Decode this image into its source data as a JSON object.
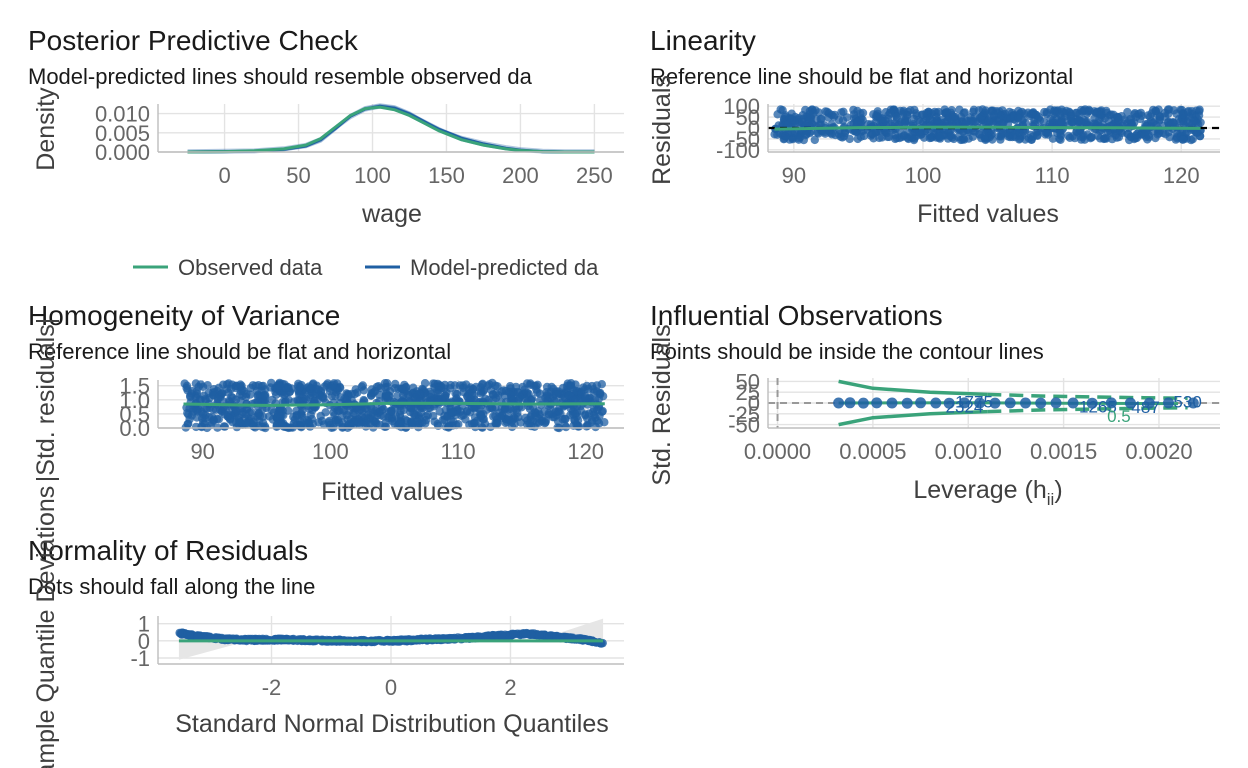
{
  "colors": {
    "blue": "#1f5fa3",
    "green": "#3aa37a",
    "grid": "#e3e3e3",
    "axis": "#bdbdbd",
    "band": "#e6e6e6"
  },
  "chart_data": [
    {
      "id": "ppc",
      "type": "line",
      "title": "Posterior Predictive Check",
      "subtitle": "Model-predicted lines should resemble observed da",
      "xlabel": "wage",
      "ylabel": "Density",
      "xlim": [
        -45,
        270
      ],
      "ylim": [
        0,
        0.0125
      ],
      "x_ticks": [
        {
          "v": 0,
          "label": "0"
        },
        {
          "v": 50,
          "label": "50"
        },
        {
          "v": 100,
          "label": "100"
        },
        {
          "v": 150,
          "label": "150"
        },
        {
          "v": 200,
          "label": "200"
        },
        {
          "v": 250,
          "label": "250"
        }
      ],
      "y_ticks": [
        {
          "v": 0.0,
          "label": "0.000"
        },
        {
          "v": 0.005,
          "label": "0.005"
        },
        {
          "v": 0.01,
          "label": "0.010"
        }
      ],
      "legend": [
        "Observed data",
        "Model-predicted da"
      ],
      "legend_position": "bottom",
      "grid": true,
      "series": [
        {
          "name": "Observed data",
          "x": [
            -25,
            0,
            20,
            40,
            55,
            65,
            75,
            85,
            95,
            105,
            115,
            125,
            135,
            145,
            160,
            175,
            190,
            200,
            215,
            230,
            250
          ],
          "y": [
            0.0,
            0.0001,
            0.0003,
            0.0008,
            0.0018,
            0.0035,
            0.0065,
            0.0095,
            0.0113,
            0.0117,
            0.011,
            0.0095,
            0.0075,
            0.0055,
            0.0032,
            0.0018,
            0.0008,
            0.0004,
            0.0001,
            0.0,
            0.0
          ]
        },
        {
          "name": "Model-predicted da",
          "x": [
            -25,
            0,
            20,
            40,
            55,
            65,
            75,
            85,
            95,
            105,
            115,
            125,
            135,
            145,
            160,
            175,
            190,
            200,
            215,
            230,
            250
          ],
          "y": [
            0.0,
            0.0001,
            0.0002,
            0.0007,
            0.0016,
            0.0032,
            0.0062,
            0.0093,
            0.0112,
            0.0119,
            0.0114,
            0.0099,
            0.0079,
            0.0059,
            0.0036,
            0.0021,
            0.001,
            0.0005,
            0.0001,
            0.0,
            0.0
          ]
        }
      ]
    },
    {
      "id": "linearity",
      "type": "scatter",
      "title": "Linearity",
      "subtitle": "Reference line should be flat and horizontal",
      "xlabel": "Fitted values",
      "ylabel": "Residuals",
      "xlim": [
        88,
        123
      ],
      "ylim": [
        -110,
        110
      ],
      "x_ticks": [
        {
          "v": 90,
          "label": "90"
        },
        {
          "v": 100,
          "label": "100"
        },
        {
          "v": 110,
          "label": "110"
        },
        {
          "v": 120,
          "label": "120"
        }
      ],
      "y_ticks": [
        {
          "v": 100,
          "label": "100"
        },
        {
          "v": 50,
          "label": "50"
        },
        {
          "v": 0,
          "label": "0"
        },
        {
          "v": -50,
          "label": "-50"
        },
        {
          "v": -100,
          "label": "-100"
        }
      ],
      "x_range_data": [
        88.5,
        121.5
      ],
      "point_band": [
        -55,
        85
      ],
      "reference_y": 0,
      "smooth": {
        "x": [
          88.5,
          95,
          100,
          105,
          110,
          115,
          121.5
        ],
        "y": [
          -5,
          2,
          3,
          3,
          2,
          1,
          -2
        ]
      },
      "grid": true
    },
    {
      "id": "homogeneity",
      "type": "scatter",
      "title": "Homogeneity of Variance",
      "subtitle": "Reference line should be flat and horizontal",
      "xlabel": "Fitted values",
      "ylabel": "|Std. residuals|",
      "xlim": [
        86.5,
        123
      ],
      "ylim": [
        0,
        1.7
      ],
      "x_ticks": [
        {
          "v": 90,
          "label": "90"
        },
        {
          "v": 100,
          "label": "100"
        },
        {
          "v": 110,
          "label": "110"
        },
        {
          "v": 120,
          "label": "120"
        }
      ],
      "y_ticks": [
        {
          "v": 1.5,
          "label": "1.5"
        },
        {
          "v": 1.0,
          "label": "1.0"
        },
        {
          "v": 0.5,
          "label": "0.5"
        },
        {
          "v": 0.0,
          "label": "0.0"
        }
      ],
      "x_range_data": [
        88.5,
        121.5
      ],
      "point_band": [
        0.0,
        1.6
      ],
      "smooth": {
        "x": [
          88.5,
          95,
          100,
          105,
          110,
          115,
          121.5
        ],
        "y": [
          0.85,
          0.8,
          0.82,
          0.88,
          0.87,
          0.85,
          0.86
        ]
      },
      "grid": true
    },
    {
      "id": "influential",
      "type": "scatter",
      "title": "Influential Observations",
      "subtitle": "Points should be inside the contour lines",
      "xlabel": "Leverage (h",
      "xlabel_sub": "ii",
      "xlabel_close": ")",
      "ylabel": "Std. Residuals",
      "xlim": [
        -5e-05,
        0.00232
      ],
      "ylim": [
        -58,
        58
      ],
      "x_ticks": [
        {
          "v": 0.0,
          "label": "0.0000"
        },
        {
          "v": 0.0005,
          "label": "0.0005"
        },
        {
          "v": 0.001,
          "label": "0.0010"
        },
        {
          "v": 0.0015,
          "label": "0.0015"
        },
        {
          "v": 0.002,
          "label": "0.0020"
        }
      ],
      "y_ticks": [
        {
          "v": 50,
          "label": "50"
        },
        {
          "v": 25,
          "label": "25"
        },
        {
          "v": 0,
          "label": "0"
        },
        {
          "v": -25,
          "label": "-25"
        },
        {
          "v": -50,
          "label": "-50"
        }
      ],
      "points": [
        {
          "x": 0.00032,
          "y": 0
        },
        {
          "x": 0.00038,
          "y": 0.5
        },
        {
          "x": 0.00045,
          "y": -0.3
        },
        {
          "x": 0.00052,
          "y": 0.2
        },
        {
          "x": 0.0006,
          "y": 0
        },
        {
          "x": 0.00068,
          "y": -0.5
        },
        {
          "x": 0.00075,
          "y": 0.4
        },
        {
          "x": 0.00083,
          "y": 0
        },
        {
          "x": 0.0009,
          "y": -0.4
        },
        {
          "x": 0.00098,
          "y": 0.3
        },
        {
          "x": 0.00106,
          "y": 0
        },
        {
          "x": 0.00114,
          "y": -0.2
        },
        {
          "x": 0.00122,
          "y": 0.3
        },
        {
          "x": 0.0013,
          "y": 0
        },
        {
          "x": 0.00138,
          "y": -0.3
        },
        {
          "x": 0.00146,
          "y": 0.2
        },
        {
          "x": 0.00155,
          "y": 0
        },
        {
          "x": 0.00165,
          "y": -0.4
        },
        {
          "x": 0.00175,
          "y": 0.3
        },
        {
          "x": 0.00185,
          "y": 0
        },
        {
          "x": 0.00195,
          "y": -0.2
        },
        {
          "x": 0.00205,
          "y": 0.2
        },
        {
          "x": 0.00218,
          "y": 0
        }
      ],
      "labels": [
        {
          "x": 0.00103,
          "y": 4,
          "text": "1775"
        },
        {
          "x": 0.00098,
          "y": -8,
          "text": "2324"
        },
        {
          "x": 0.00168,
          "y": -8,
          "text": "1265"
        },
        {
          "x": 0.00193,
          "y": -9,
          "text": "487"
        },
        {
          "x": 0.00215,
          "y": 3,
          "text": "530"
        }
      ],
      "contour_05": {
        "x": [
          0.00032,
          0.0005,
          0.0008,
          0.0011
        ],
        "upper": [
          50,
          34,
          25,
          20
        ],
        "lower": [
          -50,
          -34,
          -25,
          -20
        ]
      },
      "contour_1": {
        "x": [
          0.0011,
          0.0014,
          0.0018,
          0.00215
        ],
        "upper": [
          20,
          16,
          13,
          11
        ],
        "lower": [
          -20,
          -16,
          -13,
          -11
        ]
      },
      "contour_label": {
        "x": 0.00179,
        "y": -44,
        "text": "0.5"
      },
      "smooth": {
        "x": [
          0.00032,
          0.001,
          0.0015,
          0.0021
        ],
        "y": [
          0,
          0.5,
          -0.5,
          -1.5
        ]
      },
      "grid": true
    },
    {
      "id": "normality",
      "type": "scatter",
      "title": "Normality of Residuals",
      "subtitle": "Dots should fall along the line",
      "xlabel": "Standard Normal Distribution Quantiles",
      "ylabel": "Sample Quantile Deviations",
      "xlim": [
        -3.9,
        3.9
      ],
      "ylim": [
        -1.35,
        1.45
      ],
      "x_ticks": [
        {
          "v": -2,
          "label": "-2"
        },
        {
          "v": 0,
          "label": "0"
        },
        {
          "v": 2,
          "label": "2"
        }
      ],
      "y_ticks": [
        {
          "v": 1,
          "label": "1"
        },
        {
          "v": 0,
          "label": "0"
        },
        {
          "v": -1,
          "label": "-1"
        }
      ],
      "x_range_data": [
        -3.55,
        3.55
      ],
      "deviation_curve": {
        "x": [
          -3.55,
          -3.2,
          -2.8,
          -2.4,
          -2.0,
          -1.6,
          -1.2,
          -0.8,
          -0.4,
          0.0,
          0.4,
          0.8,
          1.2,
          1.6,
          2.0,
          2.3,
          2.6,
          3.0,
          3.3,
          3.55
        ],
        "y": [
          0.45,
          0.25,
          0.1,
          0.05,
          0.08,
          0.05,
          0.02,
          0.0,
          -0.02,
          0.0,
          0.05,
          0.1,
          0.15,
          0.25,
          0.35,
          0.4,
          0.3,
          0.15,
          0.05,
          -0.15
        ]
      },
      "reference_y": 0,
      "grid": true
    }
  ]
}
